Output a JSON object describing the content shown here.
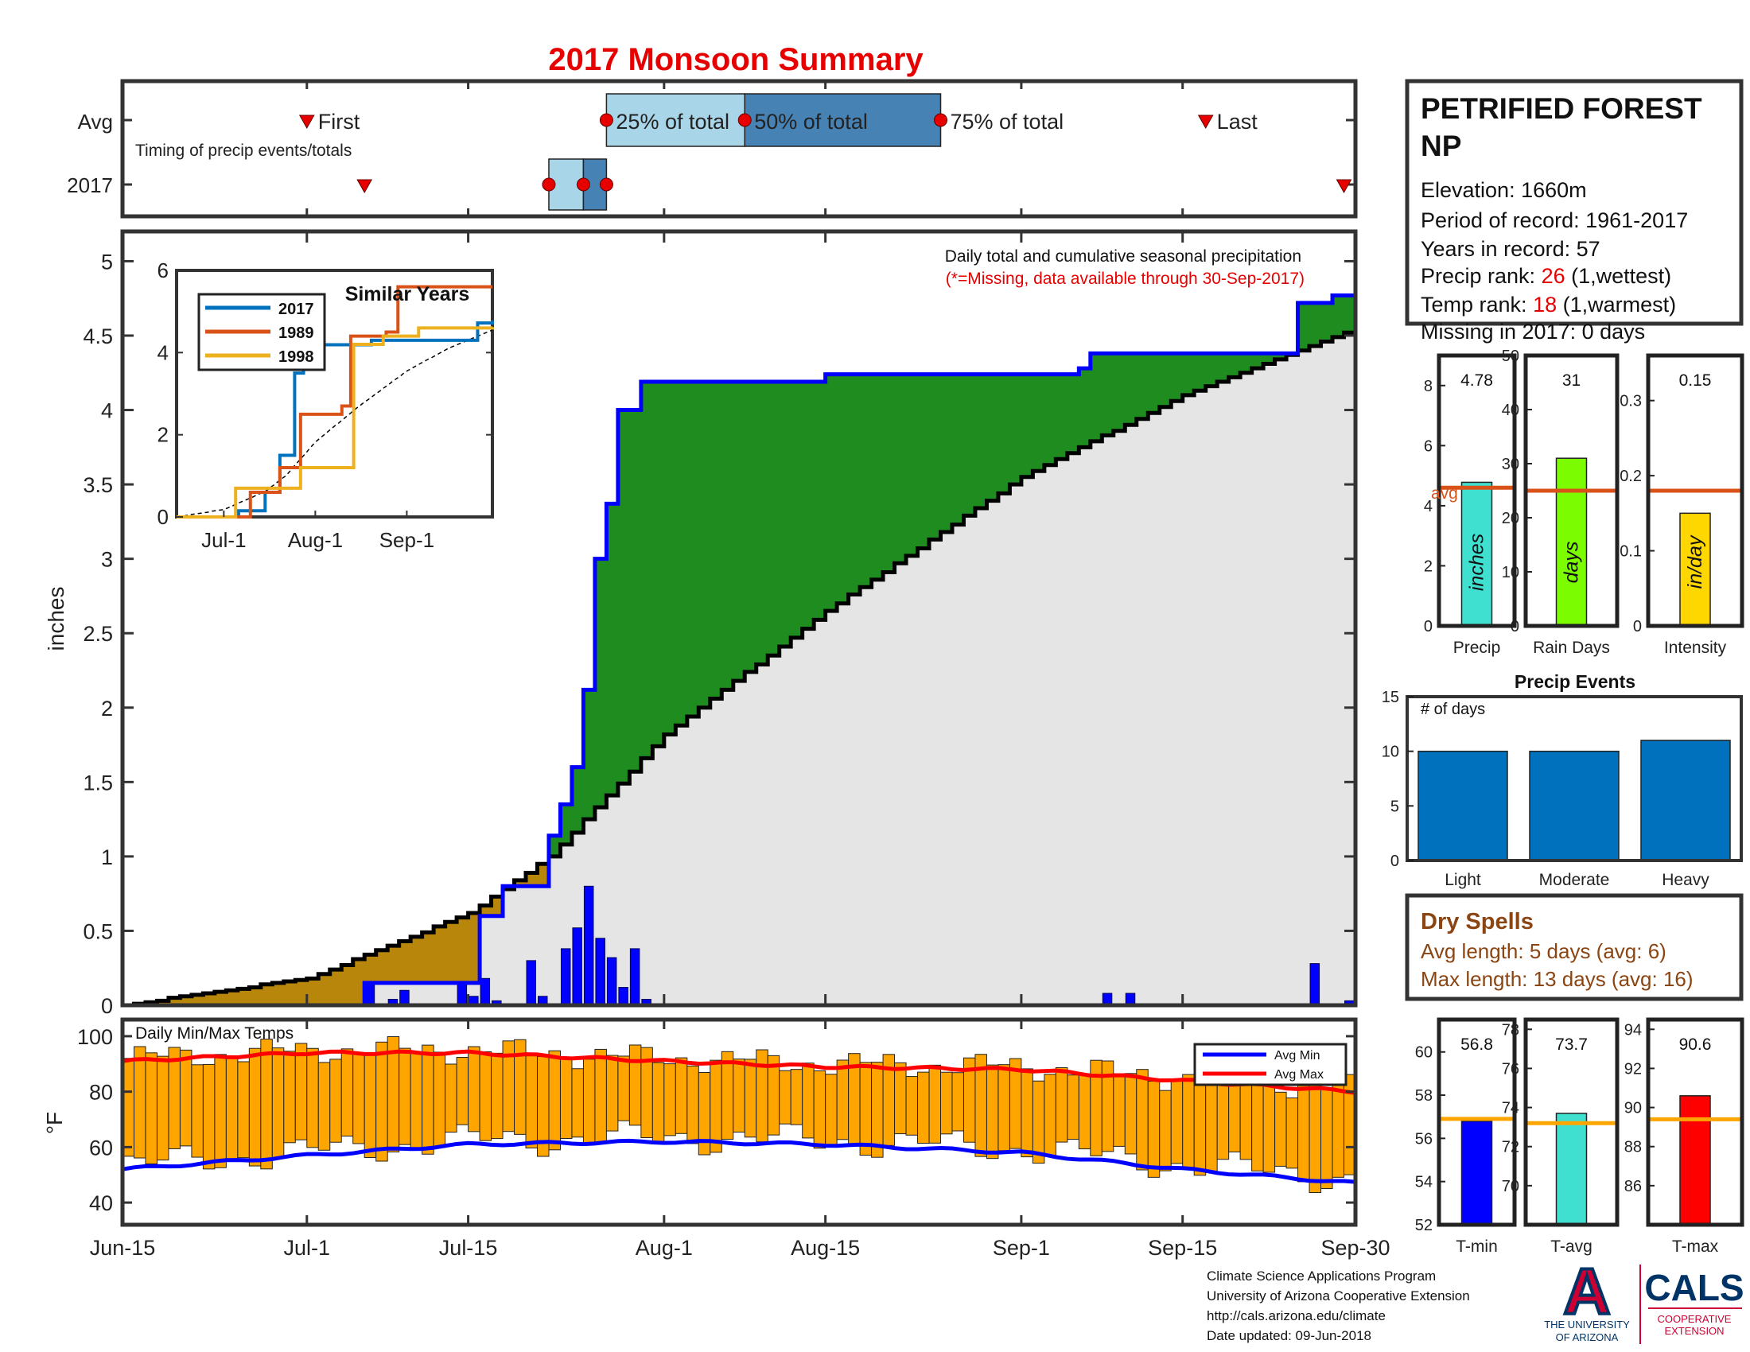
{
  "title": "2017 Monsoon Summary",
  "timing": {
    "row_avg": "Avg",
    "row_year": "2017",
    "subtitle": "Timing of precip events/totals",
    "first_label": "First",
    "last_label": "Last",
    "q25_label": "25% of total",
    "q50_label": "50% of total",
    "q75_label": "75% of total",
    "avg": {
      "first": "2017-07-01",
      "q25": "2017-07-27",
      "q50": "2017-08-08",
      "q75": "2017-08-25",
      "last": "2017-09-17"
    },
    "y2017": {
      "first": "2017-07-06",
      "q25": "2017-07-22",
      "q50": "2017-07-25",
      "q75": "2017-07-27",
      "last": "2017-09-29"
    },
    "colors": {
      "light": "#a9d5e8",
      "dark": "#4682b4",
      "marker": "#e60000"
    }
  },
  "station": {
    "name": "PETRIFIED FOREST NP",
    "elevation": "Elevation: 1660m",
    "period": "Period of record: 1961-2017",
    "years": "Years in record: 57",
    "precip_rank_prefix": "Precip rank: ",
    "precip_rank_value": "26",
    "precip_rank_suffix": " (1,wettest)",
    "temp_rank_prefix": "Temp rank: ",
    "temp_rank_value": "18",
    "temp_rank_suffix": " (1,warmest)",
    "missing": "Missing in 2017: 0 days"
  },
  "precip_chart": {
    "note1": "Daily total and cumulative seasonal precipitation",
    "note2": "(*=Missing, data available through 30-Sep-2017)",
    "ylabel": "inches",
    "yticks": [
      "0",
      "0.5",
      "1",
      "1.5",
      "2",
      "2.5",
      "3",
      "3.5",
      "4",
      "4.5",
      "5"
    ],
    "colors": {
      "above": "#1e8c1e",
      "below": "#b8860b",
      "cum": "#0000ff",
      "avg": "#000000",
      "fill": "#e6e5e5",
      "daily": "#0000ff"
    }
  },
  "inset": {
    "title": "Similar Years",
    "xticks": [
      "Jul-1",
      "Aug-1",
      "Sep-1"
    ],
    "yticks": [
      "0",
      "2",
      "4",
      "6"
    ],
    "legend": [
      "2017",
      "1989",
      "1998"
    ],
    "colors": [
      "#0072bd",
      "#d95319",
      "#edb120"
    ]
  },
  "temp_chart": {
    "label": "Daily Min/Max Temps",
    "ylabel": "°F",
    "yticks": [
      "40",
      "60",
      "80",
      "100"
    ],
    "legend_min": "Avg Min",
    "legend_max": "Avg Max",
    "colors": {
      "bar": "#ffa500",
      "min": "#0000ff",
      "max": "#ff0000"
    }
  },
  "xaxis": {
    "ticks": [
      "Jun-15",
      "Jul-1",
      "Jul-15",
      "Aug-1",
      "Aug-15",
      "Sep-1",
      "Sep-15",
      "Sep-30"
    ]
  },
  "summary_bars": {
    "precip": {
      "value": "4.78",
      "unit": "inches",
      "label": "Precip",
      "ticks": [
        "0",
        "2",
        "4",
        "6",
        "8"
      ],
      "avg_label": "avg",
      "color": "#40e0d0"
    },
    "raindays": {
      "value": "31",
      "unit": "days",
      "label": "Rain Days",
      "ticks": [
        "0",
        "10",
        "20",
        "30",
        "40",
        "50"
      ],
      "color": "#7cfc00"
    },
    "intensity": {
      "value": "0.15",
      "unit": "in/day",
      "label": "Intensity",
      "ticks": [
        "0",
        "0.1",
        "0.2",
        "0.3"
      ],
      "color": "#ffd700"
    },
    "avg_line_color": "#d95319"
  },
  "events": {
    "title": "Precip Events",
    "ylabel": "# of days",
    "ticks": [
      "0",
      "5",
      "10",
      "15"
    ],
    "categories": [
      "Light",
      "Moderate",
      "Heavy"
    ],
    "values": [
      10,
      10,
      11
    ],
    "color": "#0072bd"
  },
  "dry": {
    "title": "Dry Spells",
    "avg": "Avg length: 5 days (avg: 6)",
    "max": "Max length: 13 days (avg: 16)",
    "color": "#8b4513"
  },
  "temp_bars": {
    "tmin": {
      "value": "56.8",
      "label": "T-min",
      "ticks": [
        "52",
        "54",
        "56",
        "58",
        "60"
      ],
      "color": "#0000ff"
    },
    "tavg": {
      "value": "73.7",
      "label": "T-avg",
      "ticks": [
        "70",
        "72",
        "74",
        "76",
        "78"
      ],
      "color": "#40e0d0"
    },
    "tmax": {
      "value": "90.6",
      "label": "T-max",
      "ticks": [
        "86",
        "88",
        "90",
        "92",
        "94"
      ],
      "color": "#ff0000"
    },
    "avg_line_color": "#ffa500"
  },
  "footer": {
    "line1": "Climate Science Applications Program",
    "line2": "University of Arizona Cooperative Extension",
    "line3": "http://cals.arizona.edu/climate",
    "line4": " Date updated: 09-Jun-2018"
  },
  "logos": {
    "ua_letter": "A",
    "ua_text1": "THE UNIVERSITY",
    "ua_text2": "OF ARIZONA",
    "cals": "CALS",
    "cals_sub1": "COOPERATIVE",
    "cals_sub2": "EXTENSION",
    "ua_red": "#cc0033",
    "ua_blue": "#003366"
  },
  "chart_data": [
    {
      "type": "area",
      "title": "Daily total and cumulative seasonal precipitation",
      "ylabel": "inches",
      "ylim": [
        0,
        5.2
      ],
      "x_range": [
        "2017-06-15",
        "2017-09-30"
      ],
      "series": [
        {
          "name": "cumulative 2017",
          "x": [
            "2017-06-15",
            "2017-07-06",
            "2017-07-16",
            "2017-07-18",
            "2017-07-22",
            "2017-07-23",
            "2017-07-24",
            "2017-07-25",
            "2017-07-26",
            "2017-07-27",
            "2017-07-28",
            "2017-07-30",
            "2017-08-15",
            "2017-09-06",
            "2017-09-07",
            "2017-09-25",
            "2017-09-28",
            "2017-09-30"
          ],
          "y": [
            0,
            0.15,
            0.6,
            0.8,
            1.14,
            1.35,
            1.6,
            2.12,
            3.0,
            3.37,
            4.0,
            4.19,
            4.24,
            4.28,
            4.38,
            4.72,
            4.77,
            4.78
          ]
        },
        {
          "name": "cumulative average",
          "x": [
            "2017-06-15",
            "2017-07-01",
            "2017-07-15",
            "2017-07-22",
            "2017-08-01",
            "2017-08-15",
            "2017-09-01",
            "2017-09-15",
            "2017-09-30"
          ],
          "y": [
            0,
            0.18,
            0.62,
            1.0,
            1.82,
            2.65,
            3.55,
            4.1,
            4.55
          ]
        },
        {
          "name": "daily",
          "x": [
            "2017-07-06",
            "2017-07-08",
            "2017-07-09",
            "2017-07-14",
            "2017-07-15",
            "2017-07-16",
            "2017-07-17",
            "2017-07-20",
            "2017-07-21",
            "2017-07-23",
            "2017-07-24",
            "2017-07-25",
            "2017-07-26",
            "2017-07-27",
            "2017-07-28",
            "2017-07-29",
            "2017-07-30",
            "2017-09-08",
            "2017-09-10",
            "2017-09-26",
            "2017-09-29"
          ],
          "y": [
            0.15,
            0.04,
            0.1,
            0.16,
            0.06,
            0.18,
            0.03,
            0.3,
            0.06,
            0.38,
            0.52,
            0.8,
            0.45,
            0.32,
            0.12,
            0.38,
            0.04,
            0.08,
            0.08,
            0.28,
            0.03
          ]
        }
      ]
    },
    {
      "type": "line",
      "title": "Similar Years",
      "x_ticks": [
        "Jul-1",
        "Aug-1",
        "Sep-1"
      ],
      "ylim": [
        0,
        6
      ],
      "series": [
        {
          "name": "2017",
          "x": [
            "2017-06-15",
            "2017-07-06",
            "2017-07-15",
            "2017-07-20",
            "2017-07-25",
            "2017-07-28",
            "2017-08-20",
            "2017-09-25",
            "2017-09-30"
          ],
          "y": [
            0,
            0.15,
            0.6,
            1.5,
            3.5,
            4.19,
            4.3,
            4.72,
            4.78
          ]
        },
        {
          "name": "1989",
          "x": [
            "2017-06-15",
            "2017-07-10",
            "2017-07-20",
            "2017-07-27",
            "2017-08-10",
            "2017-08-13",
            "2017-08-25",
            "2017-08-29",
            "2017-09-30"
          ],
          "y": [
            0,
            0.6,
            1.2,
            2.5,
            2.7,
            4.4,
            4.5,
            5.6,
            5.6
          ]
        },
        {
          "name": "1998",
          "x": [
            "2017-06-15",
            "2017-07-05",
            "2017-07-18",
            "2017-07-27",
            "2017-08-14",
            "2017-08-24",
            "2017-09-05",
            "2017-09-30"
          ],
          "y": [
            0,
            0.7,
            0.7,
            1.2,
            4.2,
            4.4,
            4.6,
            4.62
          ]
        }
      ]
    },
    {
      "type": "bar",
      "title": "Daily Min/Max Temps",
      "ylabel": "°F",
      "ylim": [
        30,
        105
      ],
      "x_range": [
        "2017-06-15",
        "2017-09-30"
      ],
      "series": [
        {
          "name": "Avg Min",
          "x": [
            "2017-06-15",
            "2017-07-01",
            "2017-07-15",
            "2017-08-01",
            "2017-08-15",
            "2017-09-01",
            "2017-09-15",
            "2017-09-30"
          ],
          "y": [
            52,
            57,
            61,
            62,
            61,
            58,
            52,
            47
          ]
        },
        {
          "name": "Avg Max",
          "x": [
            "2017-06-15",
            "2017-07-01",
            "2017-07-15",
            "2017-08-01",
            "2017-08-15",
            "2017-09-01",
            "2017-09-15",
            "2017-09-30"
          ],
          "y": [
            91,
            94,
            94,
            91,
            89,
            88,
            84,
            80
          ]
        }
      ]
    },
    {
      "type": "bar",
      "categories": [
        "Precip",
        "Rain Days",
        "Intensity"
      ],
      "values": [
        4.78,
        31,
        0.15
      ],
      "averages": [
        4.6,
        25,
        0.18
      ]
    },
    {
      "type": "bar",
      "title": "Precip Events",
      "ylabel": "# of days",
      "categories": [
        "Light",
        "Moderate",
        "Heavy"
      ],
      "values": [
        10,
        10,
        11
      ],
      "ylim": [
        0,
        15
      ]
    },
    {
      "type": "bar",
      "categories": [
        "T-min",
        "T-avg",
        "T-max"
      ],
      "values": [
        56.8,
        73.7,
        90.6
      ],
      "averages": [
        56.9,
        73.2,
        89.4
      ]
    }
  ]
}
